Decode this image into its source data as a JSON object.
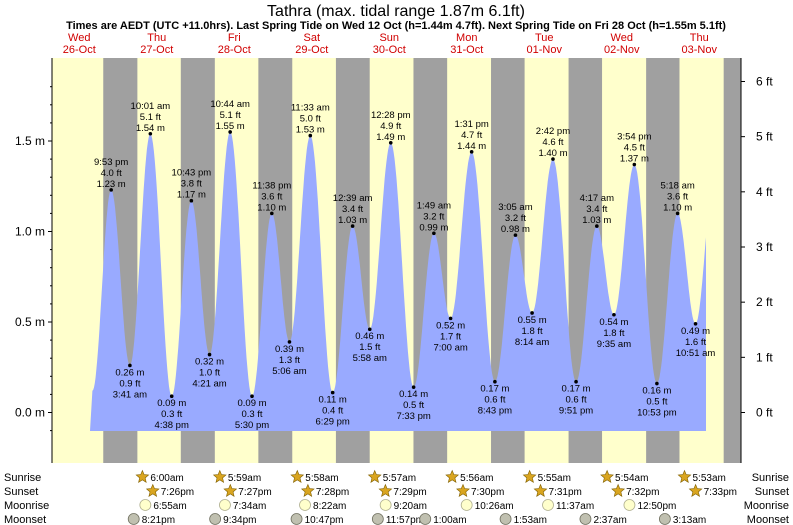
{
  "title": "Tathra (max. tidal range 1.87m 6.1ft)",
  "subtitle": "Times are AEDT (UTC +11.0hrs). Last Spring Tide on Wed 12 Oct (h=1.44m 4.7ft). Next Spring Tide on Fri 28 Oct (h=1.55m 5.1ft)",
  "colors": {
    "day": "#ffffcc",
    "night": "#a0a0a0",
    "tide": "#99aaff",
    "day_label": "#d00000",
    "sun_icon": "#d9a520",
    "moon_icon": "#ffffcc",
    "moonset_icon": "#c0c0b0"
  },
  "chart_data": {
    "type": "area",
    "units_left": "m",
    "units_right": "ft",
    "ylim_m": [
      -0.12,
      1.9
    ],
    "yticks_left": [
      "0.0 m",
      "0.5 m",
      "1.0 m",
      "1.5 m"
    ],
    "yticks_left_values": [
      0,
      0.5,
      1.0,
      1.5
    ],
    "yticks_right": [
      "0 ft",
      "1 ft",
      "2 ft",
      "3 ft",
      "4 ft",
      "5 ft",
      "6 ft"
    ],
    "yticks_right_values": [
      0,
      1,
      2,
      3,
      4,
      5,
      6
    ],
    "days": [
      {
        "name": "Wed",
        "date": "26-Oct"
      },
      {
        "name": "Thu",
        "date": "27-Oct"
      },
      {
        "name": "Fri",
        "date": "28-Oct"
      },
      {
        "name": "Sat",
        "date": "29-Oct"
      },
      {
        "name": "Sun",
        "date": "30-Oct"
      },
      {
        "name": "Mon",
        "date": "31-Oct"
      },
      {
        "name": "Tue",
        "date": "01-Nov"
      },
      {
        "name": "Wed",
        "date": "02-Nov"
      },
      {
        "name": "Thu",
        "date": "03-Nov"
      }
    ],
    "sunrise": [
      "6:00am",
      "5:59am",
      "5:58am",
      "5:57am",
      "5:56am",
      "5:55am",
      "5:54am",
      "5:53am"
    ],
    "sunset": [
      "7:26pm",
      "7:27pm",
      "7:28pm",
      "7:29pm",
      "7:30pm",
      "7:31pm",
      "7:32pm",
      "7:33pm"
    ],
    "moonrise": [
      "6:55am",
      "7:34am",
      "8:22am",
      "9:20am",
      "10:26am",
      "11:37am",
      "12:50pm"
    ],
    "moonset": [
      "8:21pm",
      "9:34pm",
      "10:47pm",
      "11:57pm",
      "1:00am",
      "1:53am",
      "2:37am",
      "3:13am"
    ],
    "tides": [
      {
        "day": 0,
        "time": "9:53 pm",
        "ft": "4.0 ft",
        "m": 1.23,
        "high": true
      },
      {
        "day": 1,
        "time": "3:41 am",
        "ft": "0.9 ft",
        "m": 0.26,
        "high": false
      },
      {
        "day": 1,
        "time": "10:01 am",
        "ft": "5.1 ft",
        "m": 1.54,
        "high": true
      },
      {
        "day": 1,
        "time": "4:38 pm",
        "ft": "0.3 ft",
        "m": 0.09,
        "high": false
      },
      {
        "day": 1,
        "time": "10:43 pm",
        "ft": "3.8 ft",
        "m": 1.17,
        "high": true
      },
      {
        "day": 2,
        "time": "4:21 am",
        "ft": "1.0 ft",
        "m": 0.32,
        "high": false
      },
      {
        "day": 2,
        "time": "10:44 am",
        "ft": "5.1 ft",
        "m": 1.55,
        "high": true
      },
      {
        "day": 2,
        "time": "5:30 pm",
        "ft": "0.3 ft",
        "m": 0.09,
        "high": false
      },
      {
        "day": 2,
        "time": "11:38 pm",
        "ft": "3.6 ft",
        "m": 1.1,
        "high": true
      },
      {
        "day": 3,
        "time": "5:06 am",
        "ft": "1.3 ft",
        "m": 0.39,
        "high": false
      },
      {
        "day": 3,
        "time": "11:33 am",
        "ft": "5.0 ft",
        "m": 1.53,
        "high": true
      },
      {
        "day": 3,
        "time": "6:29 pm",
        "ft": "0.4 ft",
        "m": 0.11,
        "high": false
      },
      {
        "day": 4,
        "time": "12:39 am",
        "ft": "3.4 ft",
        "m": 1.03,
        "high": true
      },
      {
        "day": 4,
        "time": "5:58 am",
        "ft": "1.5 ft",
        "m": 0.46,
        "high": false
      },
      {
        "day": 4,
        "time": "12:28 pm",
        "ft": "4.9 ft",
        "m": 1.49,
        "high": true
      },
      {
        "day": 4,
        "time": "7:33 pm",
        "ft": "0.5 ft",
        "m": 0.14,
        "high": false
      },
      {
        "day": 5,
        "time": "1:49 am",
        "ft": "3.2 ft",
        "m": 0.99,
        "high": true
      },
      {
        "day": 5,
        "time": "7:00 am",
        "ft": "1.7 ft",
        "m": 0.52,
        "high": false
      },
      {
        "day": 5,
        "time": "1:31 pm",
        "ft": "4.7 ft",
        "m": 1.44,
        "high": true
      },
      {
        "day": 5,
        "time": "8:43 pm",
        "ft": "0.6 ft",
        "m": 0.17,
        "high": false
      },
      {
        "day": 6,
        "time": "3:05 am",
        "ft": "3.2 ft",
        "m": 0.98,
        "high": true
      },
      {
        "day": 6,
        "time": "8:14 am",
        "ft": "1.8 ft",
        "m": 0.55,
        "high": false
      },
      {
        "day": 6,
        "time": "2:42 pm",
        "ft": "4.6 ft",
        "m": 1.4,
        "high": true
      },
      {
        "day": 6,
        "time": "9:51 pm",
        "ft": "0.6 ft",
        "m": 0.17,
        "high": false
      },
      {
        "day": 7,
        "time": "4:17 am",
        "ft": "3.4 ft",
        "m": 1.03,
        "high": true
      },
      {
        "day": 7,
        "time": "9:35 am",
        "ft": "1.8 ft",
        "m": 0.54,
        "high": false
      },
      {
        "day": 7,
        "time": "3:54 pm",
        "ft": "4.5 ft",
        "m": 1.37,
        "high": true
      },
      {
        "day": 7,
        "time": "10:53 pm",
        "ft": "0.5 ft",
        "m": 0.16,
        "high": false
      },
      {
        "day": 8,
        "time": "5:18 am",
        "ft": "3.6 ft",
        "m": 1.1,
        "high": true
      },
      {
        "day": 8,
        "time": "10:51 am",
        "ft": "1.6 ft",
        "m": 0.49,
        "high": false
      }
    ]
  },
  "rows": {
    "sunrise": "Sunrise",
    "sunset": "Sunset",
    "moonrise": "Moonrise",
    "moonset": "Moonset"
  }
}
